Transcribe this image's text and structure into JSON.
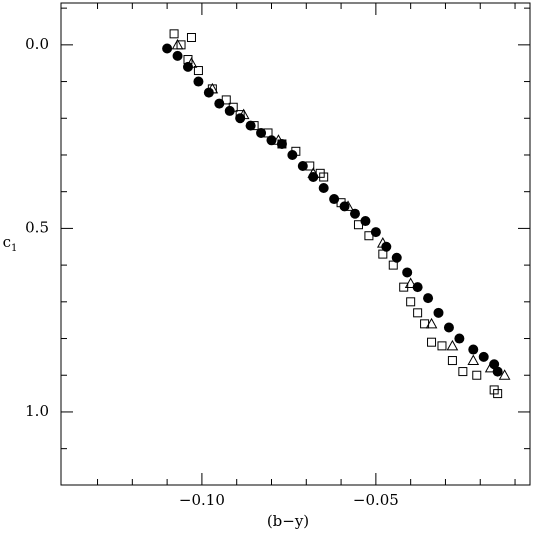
{
  "chart_data": {
    "type": "scatter",
    "xlabel": "(b−y)",
    "ylabel": {
      "text": "c",
      "subscript": "1"
    },
    "xlim": [
      -0.1405,
      -0.0057
    ],
    "ylim": [
      -0.114,
      1.199
    ],
    "y_inverted": true,
    "xticks": [
      {
        "value": -0.1,
        "label": "−0.10"
      },
      {
        "value": -0.05,
        "label": "−0.05"
      }
    ],
    "xminorticks": [
      -0.13,
      -0.12,
      -0.11,
      -0.09,
      -0.08,
      -0.07,
      -0.06,
      -0.04,
      -0.03,
      -0.02,
      -0.01
    ],
    "yticks": [
      {
        "value": 0,
        "label": "0.0"
      },
      {
        "value": 0.5,
        "label": "0.5"
      },
      {
        "value": 1,
        "label": "1.0"
      }
    ],
    "yminorticks": [
      -0.1,
      0.1,
      0.2,
      0.3,
      0.4,
      0.6,
      0.7,
      0.8,
      0.9,
      1.1
    ],
    "series": [
      {
        "marker": "square",
        "color": "#000000",
        "x": [
          -0.108,
          -0.106,
          -0.104,
          -0.103,
          -0.101,
          -0.097,
          -0.093,
          -0.089,
          -0.085,
          -0.081,
          -0.077,
          -0.073,
          -0.069,
          -0.065,
          -0.06,
          -0.055,
          -0.052,
          -0.048,
          -0.045,
          -0.042,
          -0.04,
          -0.038,
          -0.036,
          -0.034,
          -0.031,
          -0.028,
          -0.025,
          -0.021,
          -0.016,
          -0.015,
          -0.066,
          -0.091
        ],
        "values": [
          -0.03,
          0.0,
          0.04,
          -0.02,
          0.07,
          0.12,
          0.15,
          0.19,
          0.22,
          0.24,
          0.27,
          0.29,
          0.33,
          0.36,
          0.43,
          0.49,
          0.52,
          0.57,
          0.6,
          0.66,
          0.7,
          0.73,
          0.76,
          0.81,
          0.82,
          0.86,
          0.89,
          0.9,
          0.94,
          0.95,
          0.35,
          0.17
        ]
      },
      {
        "marker": "triangle",
        "color": "#000000",
        "x": [
          -0.107,
          -0.103,
          -0.097,
          -0.088,
          -0.078,
          -0.068,
          -0.058,
          -0.048,
          -0.04,
          -0.034,
          -0.028,
          -0.022,
          -0.017,
          -0.013
        ],
        "values": [
          0.0,
          0.05,
          0.12,
          0.19,
          0.26,
          0.35,
          0.44,
          0.54,
          0.65,
          0.76,
          0.82,
          0.86,
          0.88,
          0.9
        ]
      },
      {
        "marker": "circle",
        "color": "#000000",
        "x": [
          -0.11,
          -0.107,
          -0.104,
          -0.101,
          -0.098,
          -0.095,
          -0.092,
          -0.089,
          -0.086,
          -0.083,
          -0.08,
          -0.077,
          -0.074,
          -0.071,
          -0.068,
          -0.065,
          -0.062,
          -0.059,
          -0.056,
          -0.053,
          -0.05,
          -0.047,
          -0.044,
          -0.041,
          -0.038,
          -0.035,
          -0.032,
          -0.029,
          -0.026,
          -0.022,
          -0.019,
          -0.016,
          -0.015
        ],
        "values": [
          0.01,
          0.03,
          0.06,
          0.1,
          0.13,
          0.16,
          0.18,
          0.2,
          0.22,
          0.24,
          0.26,
          0.27,
          0.3,
          0.33,
          0.36,
          0.39,
          0.42,
          0.44,
          0.46,
          0.48,
          0.51,
          0.55,
          0.58,
          0.62,
          0.66,
          0.69,
          0.73,
          0.77,
          0.8,
          0.83,
          0.85,
          0.87,
          0.89
        ]
      }
    ]
  }
}
